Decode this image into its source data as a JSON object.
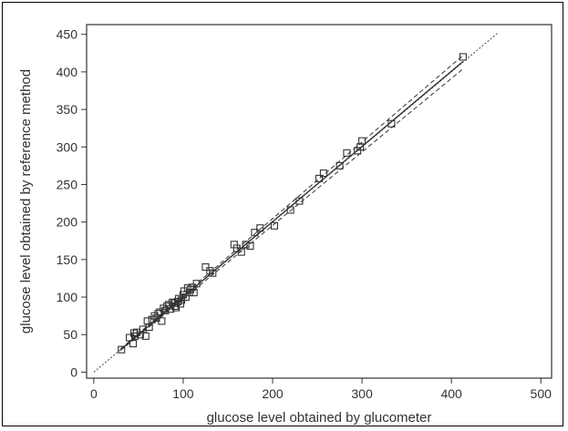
{
  "chart_data": {
    "type": "scatter",
    "title": "",
    "xlabel": "glucose level obtained by glucometer",
    "ylabel": "glucose level obtained by reference method",
    "xlim": [
      -8,
      512
    ],
    "ylim": [
      -8,
      463
    ],
    "x_ticks": [
      0,
      100,
      200,
      300,
      400,
      500
    ],
    "y_ticks": [
      0,
      50,
      100,
      150,
      200,
      250,
      300,
      350,
      400,
      450
    ],
    "grid": false,
    "legend": "none",
    "series": [
      {
        "marker": "square",
        "x": [
          31,
          40,
          44,
          45,
          46,
          48,
          52,
          55,
          58,
          60,
          62,
          65,
          68,
          70,
          72,
          74,
          76,
          78,
          80,
          82,
          84,
          86,
          88,
          90,
          91,
          92,
          94,
          95,
          97,
          98,
          100,
          101,
          103,
          105,
          107,
          108,
          110,
          112,
          115,
          125,
          130,
          133,
          157,
          160,
          165,
          170,
          175,
          180,
          186,
          202,
          220,
          230,
          252,
          257,
          275,
          283,
          295,
          298,
          300,
          333,
          413
        ],
        "y": [
          30,
          46,
          38,
          52,
          48,
          53,
          50,
          57,
          48,
          68,
          60,
          70,
          75,
          72,
          78,
          80,
          68,
          85,
          82,
          88,
          90,
          84,
          93,
          92,
          88,
          86,
          94,
          98,
          91,
          96,
          103,
          108,
          100,
          112,
          106,
          110,
          113,
          106,
          118,
          140,
          135,
          132,
          170,
          165,
          160,
          170,
          168,
          186,
          192,
          195,
          216,
          228,
          258,
          265,
          275,
          292,
          295,
          300,
          308,
          331,
          420
        ]
      }
    ],
    "lines": [
      {
        "kind": "solid",
        "x": [
          30,
          413
        ],
        "y": [
          30,
          414
        ]
      },
      {
        "kind": "dashed",
        "x": [
          30,
          413
        ],
        "y": [
          31,
          422
        ]
      },
      {
        "kind": "dashed",
        "x": [
          30,
          413
        ],
        "y": [
          29,
          404
        ]
      },
      {
        "kind": "dotted",
        "x": [
          0,
          452
        ],
        "y": [
          0,
          452
        ]
      }
    ],
    "colors": {
      "axis": "#333333",
      "marker": "#333333",
      "line": "#333333"
    }
  }
}
